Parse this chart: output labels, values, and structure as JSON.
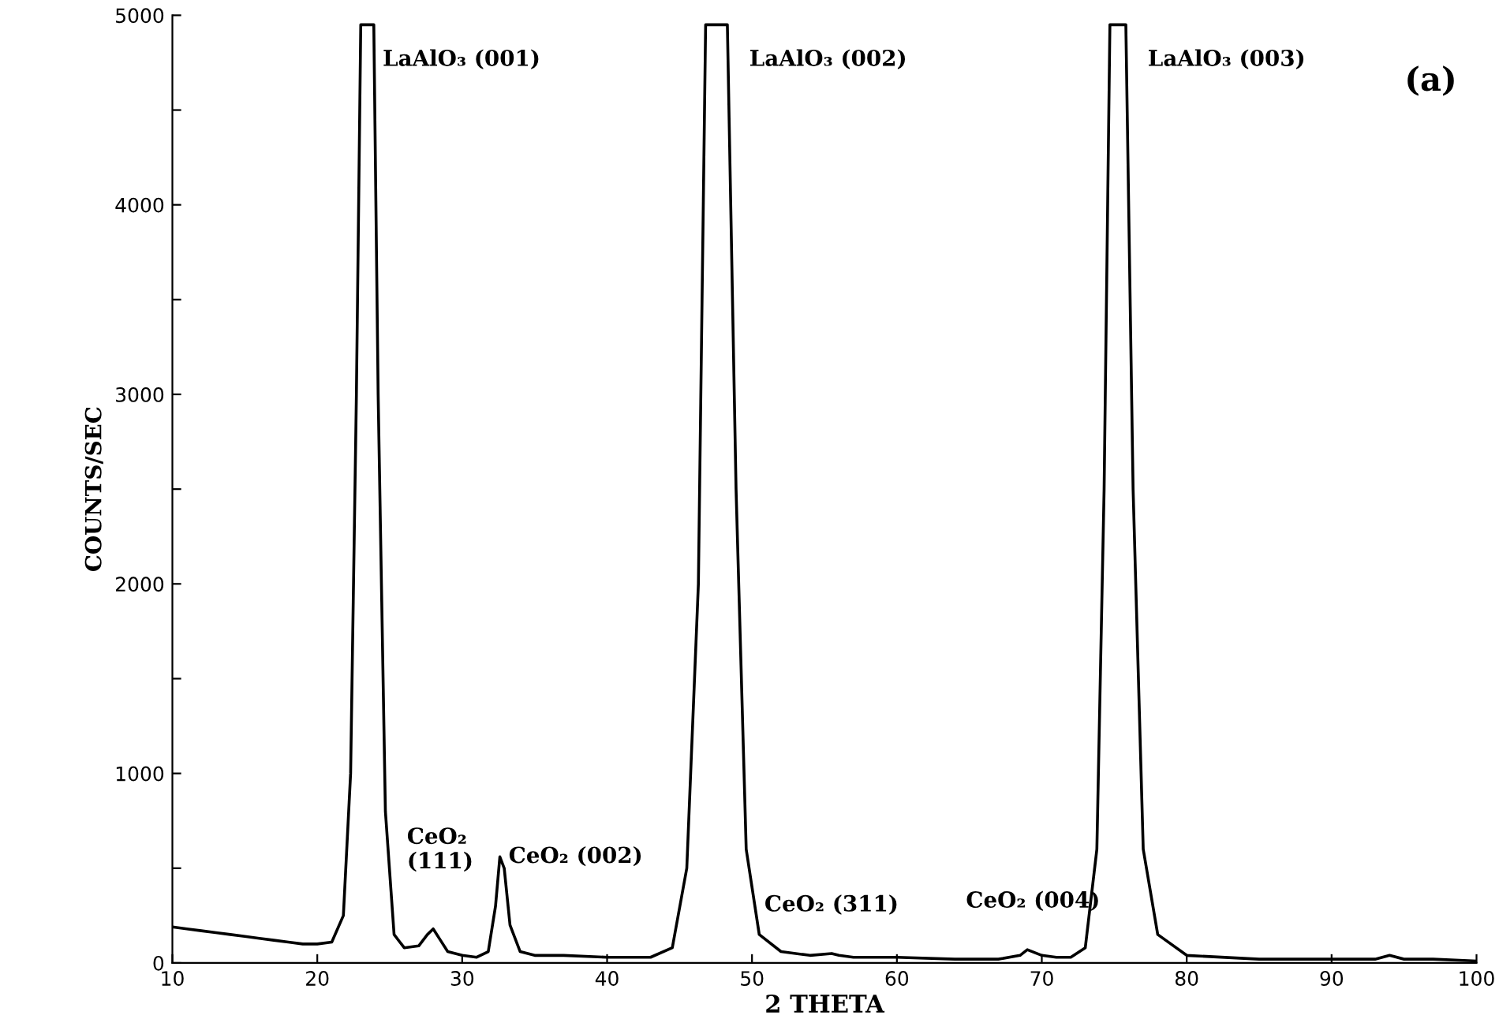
{
  "chart_data": {
    "type": "line",
    "xlabel": "2 THETA",
    "ylabel": "COUNTS/SEC",
    "series": [
      {
        "color": "#000000",
        "x": [
          10,
          11,
          12,
          13,
          14,
          15,
          16,
          17,
          18,
          19,
          20,
          21,
          21.8,
          22.3,
          22.7,
          23.0,
          23.9,
          24.2,
          24.7,
          25.3,
          26,
          27,
          27.6,
          28.0,
          28.5,
          29,
          30,
          31,
          31.8,
          32.3,
          32.6,
          32.9,
          33.3,
          34,
          35,
          37,
          40,
          43,
          44.5,
          45.5,
          46.3,
          46.8,
          48.3,
          48.9,
          49.6,
          50.5,
          52,
          54,
          55.5,
          56,
          57,
          60,
          64,
          67,
          68.5,
          69,
          70,
          71,
          72,
          73,
          73.8,
          74.3,
          74.7,
          75.8,
          76.3,
          77,
          78,
          80,
          85,
          90,
          93,
          94,
          95,
          97,
          100
        ],
        "values": [
          190,
          180,
          170,
          160,
          150,
          140,
          130,
          120,
          110,
          100,
          100,
          110,
          250,
          1000,
          3000,
          4950,
          4950,
          3000,
          800,
          150,
          80,
          90,
          150,
          180,
          120,
          60,
          40,
          30,
          60,
          300,
          560,
          500,
          200,
          60,
          40,
          40,
          30,
          30,
          80,
          500,
          2000,
          4950,
          4950,
          2500,
          600,
          150,
          60,
          40,
          50,
          40,
          30,
          30,
          20,
          20,
          40,
          70,
          40,
          30,
          30,
          80,
          600,
          2500,
          4950,
          4950,
          2500,
          600,
          150,
          40,
          20,
          20,
          20,
          40,
          20,
          20,
          10
        ]
      }
    ],
    "xlim": [
      10,
      100
    ],
    "ylim": [
      0,
      5000
    ],
    "xticks": [
      {
        "value": 10,
        "label": "10"
      },
      20,
      30,
      40,
      50,
      60,
      70,
      80,
      90,
      100
    ],
    "yticks": [
      0,
      {
        "value": 500,
        "label": null
      },
      1000,
      {
        "value": 1500,
        "label": null
      },
      2000,
      {
        "value": 2500,
        "label": null
      },
      3000,
      {
        "value": 3500,
        "label": null
      },
      4000,
      {
        "value": 4500,
        "label": null
      },
      5000
    ],
    "grid": false,
    "annotations": [
      {
        "text": "LaAlO₃ (001)",
        "x": 23.0,
        "y": 4950
      },
      {
        "text": "LaAlO₃ (002)",
        "x": 48.3,
        "y": 4950
      },
      {
        "text": "LaAlO₃ (003)",
        "x": 75.8,
        "y": 4950
      },
      {
        "text": "CeO₂\n(111)",
        "x": 28.0,
        "y": 180
      },
      {
        "text": "CeO₂ (002)",
        "x": 32.6,
        "y": 560
      },
      {
        "text": "CeO₂ (311)",
        "x": 56,
        "y": 50
      },
      {
        "text": "CeO₂ (004)",
        "x": 69,
        "y": 70
      },
      "(a)"
    ]
  }
}
